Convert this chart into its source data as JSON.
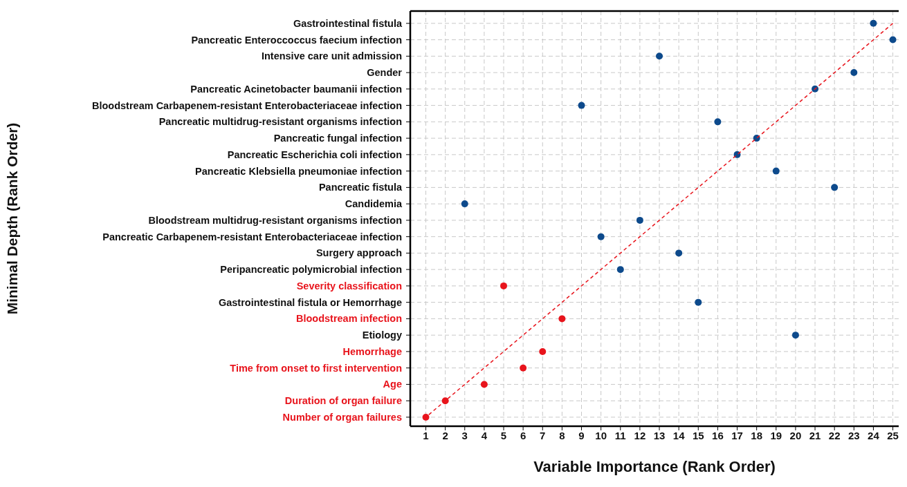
{
  "chart_data": {
    "type": "scatter",
    "orientation": "horizontal",
    "xlabel": "Variable Importance (Rank Order)",
    "ylabel": "Minimal Depth (Rank Order)",
    "categories": [
      "Gastrointestinal fistula",
      "Pancreatic Enteroccoccus faecium infection",
      "Intensive care unit admission",
      "Gender",
      "Pancreatic Acinetobacter baumanii infection",
      "Bloodstream Carbapenem-resistant Enterobacteriaceae infection",
      "Pancreatic multidrug-resistant organisms infection",
      "Pancreatic fungal infection",
      "Pancreatic Escherichia coli infection",
      "Pancreatic Klebsiella pneumoniae infection",
      "Pancreatic fistula",
      "Candidemia",
      "Bloodstream multidrug-resistant organisms infection",
      "Pancreatic Carbapenem-resistant Enterobacteriaceae infection",
      "Surgery approach",
      "Peripancreatic polymicrobial infection",
      "Severity classification",
      "Gastrointestinal fistula or Hemorrhage",
      "Bloodstream infection",
      "Etiology",
      "Hemorrhage",
      "Time from onset to first intervention",
      "Age",
      "Duration of organ failure",
      "Number of organ failures"
    ],
    "series": [
      {
        "values": [
          24,
          25,
          13,
          23,
          21,
          9,
          16,
          18,
          17,
          19,
          22,
          3,
          12,
          10,
          14,
          11,
          5,
          15,
          8,
          20,
          7,
          6,
          4,
          2,
          1
        ],
        "colors": [
          "#0d4a8c",
          "#0d4a8c",
          "#0d4a8c",
          "#0d4a8c",
          "#0d4a8c",
          "#0d4a8c",
          "#0d4a8c",
          "#0d4a8c",
          "#0d4a8c",
          "#0d4a8c",
          "#0d4a8c",
          "#0d4a8c",
          "#0d4a8c",
          "#0d4a8c",
          "#0d4a8c",
          "#0d4a8c",
          "#e8141c",
          "#0d4a8c",
          "#e8141c",
          "#0d4a8c",
          "#e8141c",
          "#e8141c",
          "#e8141c",
          "#e8141c",
          "#e8141c"
        ],
        "marker": "circle"
      },
      {
        "type": "line",
        "color": "#e8141c",
        "line_style": "dashed",
        "values": [
          25,
          24,
          23,
          22,
          21,
          20,
          19,
          18,
          17,
          16,
          15,
          14,
          13,
          12,
          11,
          10,
          9,
          8,
          7,
          6,
          5,
          4,
          3,
          2,
          1
        ]
      }
    ],
    "xlim": [
      0.2,
      25.3
    ],
    "xticks": [
      1,
      2,
      3,
      4,
      5,
      6,
      7,
      8,
      9,
      10,
      11,
      12,
      13,
      14,
      15,
      16,
      17,
      18,
      19,
      20,
      21,
      22,
      23,
      24,
      25
    ],
    "grid": true
  }
}
